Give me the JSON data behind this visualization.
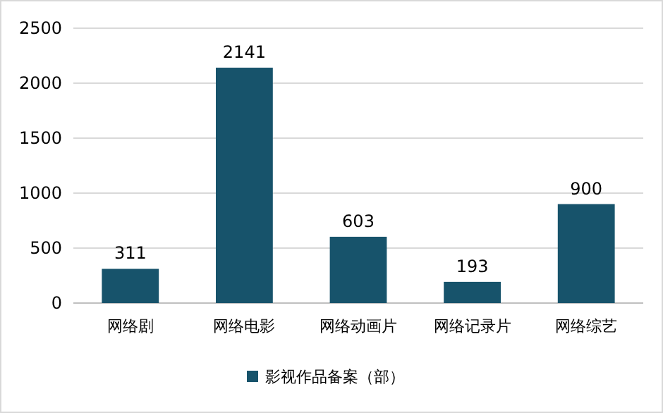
{
  "chart_data": {
    "type": "bar",
    "categories": [
      "网络剧",
      "网络电影",
      "网络动画片",
      "网络记录片",
      "网络综艺"
    ],
    "series": [
      {
        "name": "影视作品备案（部）",
        "color": "#17536b",
        "values": [
          311,
          2141,
          603,
          193,
          900
        ]
      }
    ],
    "ylim": [
      0,
      2500
    ],
    "yticks": [
      0,
      500,
      1000,
      1500,
      2000,
      2500
    ],
    "grid": "y",
    "legend": "bottom",
    "data_labels": true
  }
}
